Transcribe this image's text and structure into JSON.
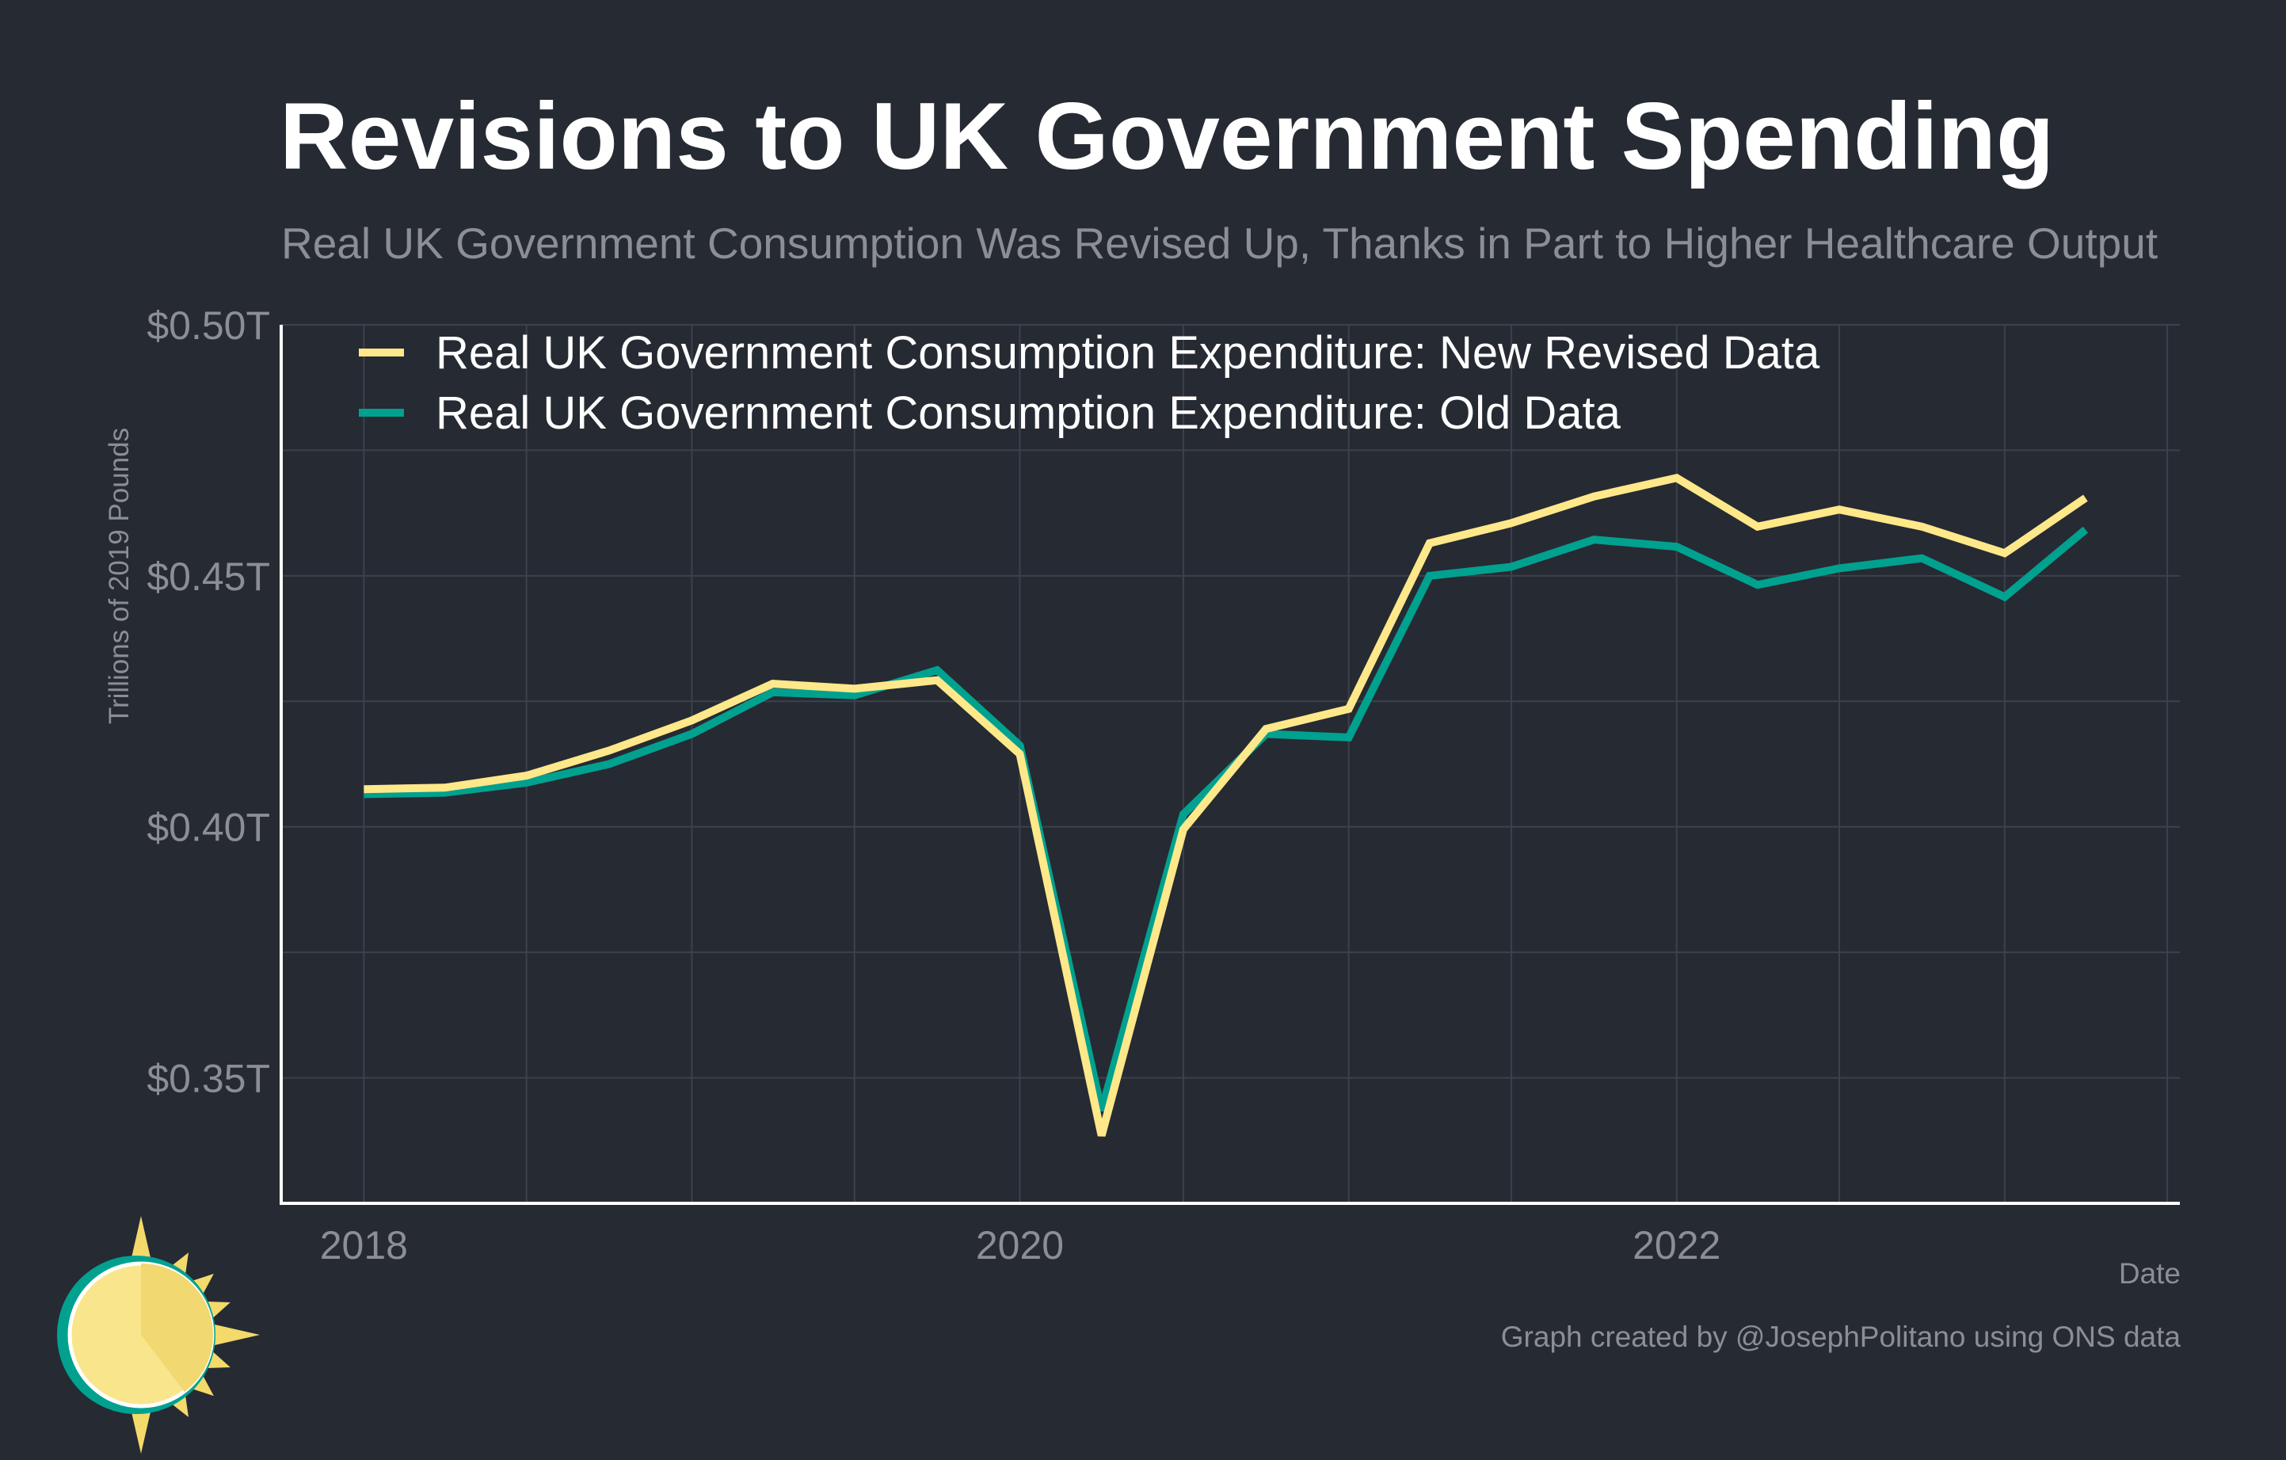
{
  "chart_data": {
    "type": "line",
    "title": "Revisions to UK Government Spending",
    "subtitle": "Real UK Government Consumption Was Revised Up, Thanks in Part to Higher Healthcare Output",
    "xlabel": "Date",
    "ylabel": "Trillions of 2019 Pounds",
    "x_ticks": [
      "2018",
      "2020",
      "2022"
    ],
    "y_ticks": [
      "$0.35T",
      "$0.40T",
      "$0.45T",
      "$0.50T"
    ],
    "ylim": [
      0.325,
      0.5
    ],
    "grid": true,
    "legend_position": "top-left",
    "x": [
      "2018-01-01",
      "2018-04-01",
      "2018-07-01",
      "2018-10-01",
      "2019-01-01",
      "2019-04-01",
      "2019-07-01",
      "2019-10-01",
      "2020-01-01",
      "2020-04-01",
      "2020-07-01",
      "2020-10-01",
      "2021-01-01",
      "2021-04-01",
      "2021-07-01",
      "2021-10-01",
      "2022-01-01",
      "2022-04-01",
      "2022-07-01",
      "2022-10-01",
      "2023-01-01",
      "2023-04-01"
    ],
    "series": [
      {
        "name": "Real UK Government Consumption Expenditure: Old Data",
        "color": "#00a18f",
        "values": [
          0.4065,
          0.4068,
          0.4088,
          0.4125,
          0.4185,
          0.4268,
          0.4262,
          0.4312,
          0.4162,
          0.3435,
          0.4025,
          0.4185,
          0.4178,
          0.45,
          0.4518,
          0.4572,
          0.4558,
          0.4482,
          0.4515,
          0.4535,
          0.4458,
          0.4592
        ]
      },
      {
        "name": "Real UK Government Consumption Expenditure: New Revised Data",
        "color": "#ffe88a",
        "values": [
          0.4075,
          0.4078,
          0.4102,
          0.4152,
          0.4212,
          0.4285,
          0.4275,
          0.4292,
          0.4145,
          0.3385,
          0.3995,
          0.4195,
          0.4235,
          0.4565,
          0.4605,
          0.4658,
          0.4695,
          0.4598,
          0.4632,
          0.4598,
          0.4545,
          0.4655
        ]
      }
    ],
    "annotations": [
      "Graph created by @JosephPolitano using ONS data"
    ]
  },
  "colors": {
    "background": "#262a33",
    "grid": "#3d414a",
    "axis": "#ffffff",
    "tick_text": "#8b8e95"
  },
  "logo": {
    "icon": "sun-icon"
  }
}
